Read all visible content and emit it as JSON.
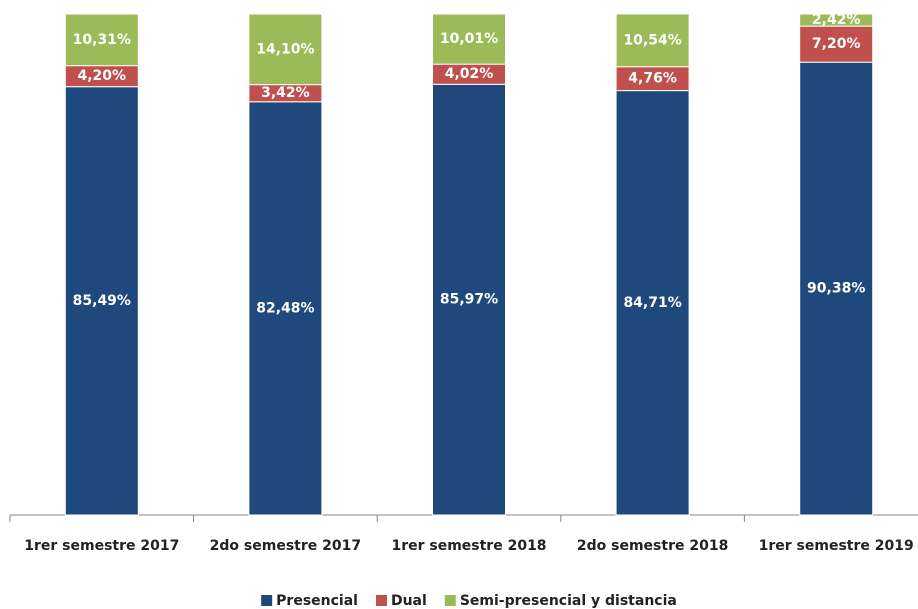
{
  "chart_data": {
    "type": "stacked_bar",
    "categories": [
      "1rer semestre 2017",
      "2do semestre 2017",
      "1rer semestre 2018",
      "2do semestre 2018",
      "1rer semestre 2019"
    ],
    "series": [
      {
        "name": "Presencial",
        "color": "#1f497d",
        "values": [
          85.49,
          82.48,
          85.97,
          84.71,
          90.38
        ],
        "value_labels": [
          "85,49%",
          "82,48%",
          "85,97%",
          "84,71%",
          "90,38%"
        ]
      },
      {
        "name": "Dual",
        "color": "#c0504d",
        "values": [
          4.2,
          3.42,
          4.02,
          4.76,
          7.2
        ],
        "value_labels": [
          "4,20%",
          "3,42%",
          "4,02%",
          "4,76%",
          "7,20%"
        ]
      },
      {
        "name": "Semi-presencial y distancia",
        "color": "#9bbb59",
        "values": [
          10.31,
          14.1,
          10.01,
          10.54,
          2.42
        ],
        "value_labels": [
          "10,31%",
          "14,10%",
          "10,01%",
          "10,54%",
          "2,42%"
        ]
      }
    ],
    "ylim": [
      0,
      100
    ],
    "legend": "bottom"
  }
}
